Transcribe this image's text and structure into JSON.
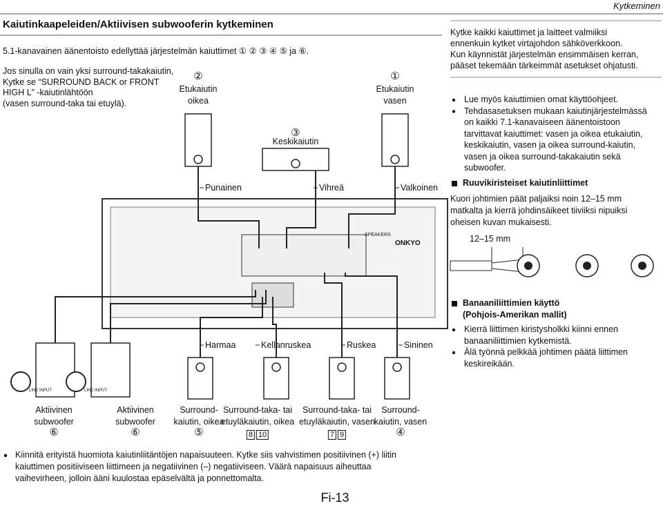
{
  "header": {
    "section": "Kytkeminen",
    "title": "Kaiutinkaapeleiden/Aktiivisen subwooferin kytkeminen"
  },
  "left": {
    "intro": "5.1-kanavainen äänentoisto edellyttää järjestelmän kaiuttimet ① ② ③ ④ ⑤ ja ⑥.",
    "note": [
      "Jos sinulla on vain yksi surround-takakaiutin,",
      "Kytke se “SURROUND BACK or FRONT",
      "HIGH L” -kaiutinlähtöön",
      "(vasen surround-taka tai etuylä)."
    ]
  },
  "diagram": {
    "speakers_front": [
      {
        "number": "②",
        "label": [
          "Etukaiutin",
          "oikea"
        ]
      },
      {
        "number": "③",
        "label": [
          "Keskikaiutin"
        ]
      },
      {
        "number": "①",
        "label": [
          "Etukaiutin",
          "vasen"
        ]
      }
    ],
    "wires_top": [
      "Punainen",
      "Vihreä",
      "Valkoinen"
    ],
    "wires_bottom": [
      "Harmaa",
      "Kellanruskea",
      "Ruskea",
      "Sininen"
    ],
    "line_input": "LINE INPUT",
    "brand": "ONKYO",
    "speakers_label": "SPEAKERS",
    "bottom_speakers": [
      {
        "label": [
          "Aktiivinen",
          "subwoofer"
        ],
        "number": "⑥"
      },
      {
        "label": [
          "Aktiivinen",
          "subwoofer"
        ],
        "number": "⑥"
      },
      {
        "label": [
          "Surround-",
          "kaiutin, oikea"
        ],
        "number": "⑤"
      },
      {
        "label": [
          "Surround-taka- tai",
          "etuyläkaiutin, oikea"
        ],
        "codes": [
          "8",
          "10"
        ]
      },
      {
        "label": [
          "Surround-taka- tai",
          "etuyläkaiutin, vasen"
        ],
        "codes": [
          "7",
          "9"
        ]
      },
      {
        "label": [
          "Surround-",
          "kaiutin, vasen"
        ],
        "number": "④"
      }
    ]
  },
  "right": {
    "intro": [
      "Kytke kaikki kaiuttimet ja laitteet valmiiksi",
      "ennenkuin kytket virtajohdon sähköverkkoon.",
      "Kun käynnistät järjestelmän ensimmäisen kerran,",
      "pääset tekemään tärkeimmät asetukset ohjatusti."
    ],
    "bullets": [
      [
        "Lue myös kaiuttimien omat käyttöohjeet."
      ],
      [
        "Tehdasasetuksen mukaan kaiutinjärjestelmässä",
        "on kaikki 7.1-kanavaiseen äänentoistoon",
        "tarvittavat kaiuttimet: vasen ja oikea etukaiutin,",
        "keskikaiutin, vasen ja oikea surround-kaiutin,",
        "vasen ja oikea surround-takakaiutin sekä",
        "subwoofer."
      ]
    ],
    "screw_heading": "Ruuvikiristeiset kaiutinliittimet",
    "screw_text": [
      "Kuori johtimien päät paljaiksi noin 12–15 mm",
      "matkalta ja kierrä johdinsäikeet tiiviiksi nipuiksi",
      "oheisen kuvan mukaisesti."
    ],
    "strip_length": "12–15 mm",
    "banana_heading": [
      "Banaaniliittimien käyttö",
      "(Pohjois-Amerikan mallit)"
    ],
    "banana_bullets": [
      [
        "Kierrä liittimen kiristysholkki kiinni ennen",
        "banaaniliittimien kytkemistä."
      ],
      [
        "Älä työnnä pelkkää johtimen päätä liittimen",
        "keskireikään."
      ]
    ]
  },
  "footer_note": [
    "Kiinnitä erityistä huomiota kaiutinliitäntöjen napaisuuteen. Kytke siis vahvistimen positiivinen (+) liitin",
    "kaiuttimen positiiviseen liittimeen ja negatiivinen (–) negatiiviseen. Väärä napaisuus aiheuttaa",
    "vaihevirheen, jolloin ääni kuulostaa epäselvältä ja ponnettomalta."
  ],
  "page_number": "Fi-13"
}
